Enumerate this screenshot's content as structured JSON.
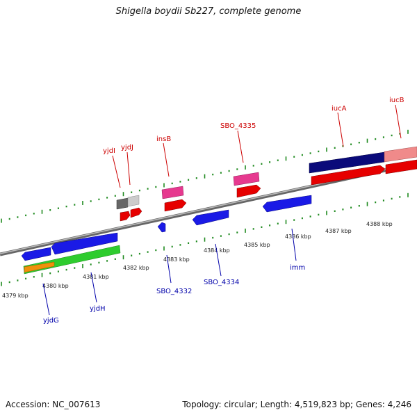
{
  "title": "Shigella boydii Sb227, complete genome",
  "footer": {
    "accession": "Accession: NC_007613",
    "summary": "Topology: circular; Length: 4,519,823 bp; Genes: 4,246"
  },
  "colors": {
    "backbone": "#8a8a8a",
    "tick": "#1f8a1f",
    "upper_label": "#cc0000",
    "lower_label": "#0000aa",
    "feature_blue": "#1a1ae6",
    "feature_red": "#e60000",
    "feature_green": "#2ecc2e",
    "feature_orange": "#f0900a",
    "feature_pink": "#e6398f",
    "feature_navy": "#0a0a7a",
    "feature_salmon": "#f08a8a",
    "feature_grey_dark": "#666666",
    "feature_grey_light": "#cccccc"
  },
  "kbp_labels": [
    "4379 kbp",
    "4380 kbp",
    "4381 kbp",
    "4382 kbp",
    "4383 kbp",
    "4384 kbp",
    "4385 kbp",
    "4386 kbp",
    "4387 kbp",
    "4388 kbp"
  ],
  "upper_gene_labels": [
    "yjdI",
    "yjdJ",
    "insB",
    "SBO_4335",
    "iucA",
    "iucB"
  ],
  "lower_gene_labels": [
    "yjdG",
    "yjdH",
    "SBO_4332",
    "SBO_4334",
    "imm"
  ]
}
